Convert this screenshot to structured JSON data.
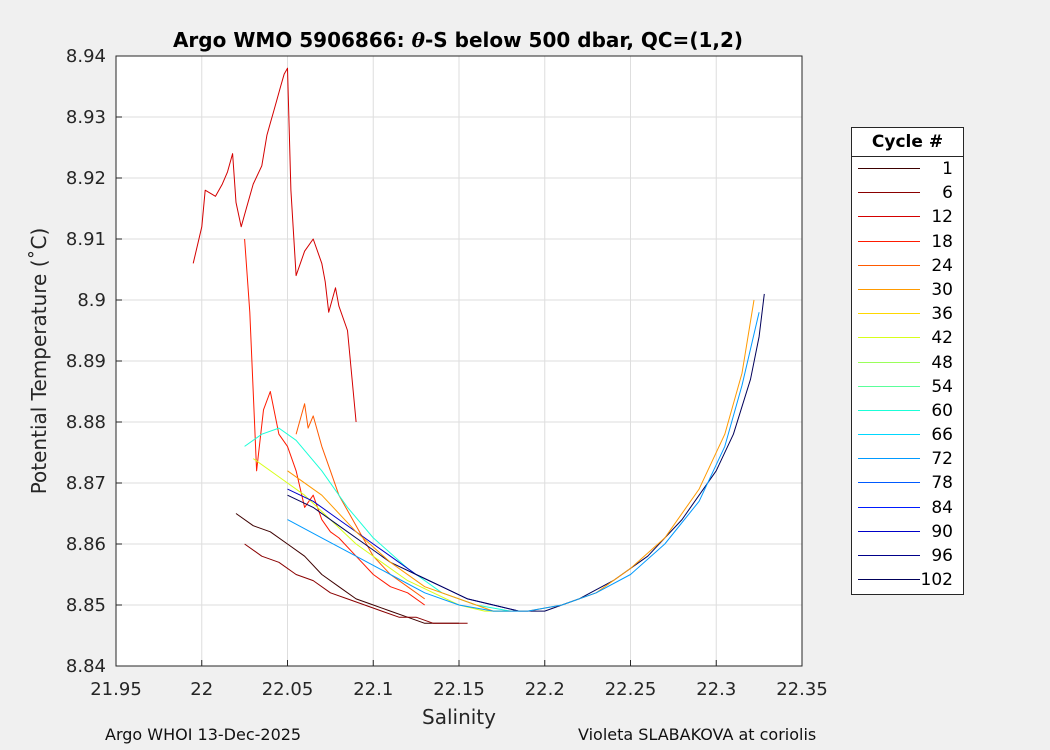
{
  "chart_data": {
    "type": "line",
    "title": "Argo WMO 5906866: θ-S below 500 dbar,  QC=(1,2)",
    "title_parts": {
      "prefix": "Argo WMO 5906866: ",
      "theta": "θ",
      "suffix": "-S below 500 dbar,  QC=(1,2)"
    },
    "xlabel": "Salinity",
    "ylabel": "Potential Temperature (˚C)",
    "xlim": [
      21.95,
      22.35
    ],
    "ylim": [
      8.84,
      8.94
    ],
    "xticks": [
      21.95,
      22,
      22.05,
      22.1,
      22.15,
      22.2,
      22.25,
      22.3,
      22.35
    ],
    "xtick_labels": [
      "21.95",
      "22",
      "22.05",
      "22.1",
      "22.15",
      "22.2",
      "22.25",
      "22.3",
      "22.35"
    ],
    "yticks": [
      8.84,
      8.85,
      8.86,
      8.87,
      8.88,
      8.89,
      8.9,
      8.91,
      8.92,
      8.93,
      8.94
    ],
    "ytick_labels": [
      "8.84",
      "8.85",
      "8.86",
      "8.87",
      "8.88",
      "8.89",
      "8.9",
      "8.91",
      "8.92",
      "8.93",
      "8.94"
    ],
    "grid": true,
    "legend": {
      "title": "Cycle #",
      "position": "right",
      "entries": [
        {
          "label": "1",
          "color": "#3d0000"
        },
        {
          "label": "6",
          "color": "#8a0000"
        },
        {
          "label": "12",
          "color": "#d40000"
        },
        {
          "label": "18",
          "color": "#ff1a00"
        },
        {
          "label": "24",
          "color": "#ff5a00"
        },
        {
          "label": "30",
          "color": "#ff9a00"
        },
        {
          "label": "36",
          "color": "#ffd800"
        },
        {
          "label": "42",
          "color": "#d8ff1a"
        },
        {
          "label": "48",
          "color": "#9aff5a"
        },
        {
          "label": "54",
          "color": "#5aff9a"
        },
        {
          "label": "60",
          "color": "#1affd8"
        },
        {
          "label": "66",
          "color": "#00d8ff"
        },
        {
          "label": "72",
          "color": "#009aff"
        },
        {
          "label": "78",
          "color": "#005aff"
        },
        {
          "label": "84",
          "color": "#001aff"
        },
        {
          "label": "90",
          "color": "#0000c8"
        },
        {
          "label": "96",
          "color": "#00008a"
        },
        {
          "label": "102",
          "color": "#00005a"
        }
      ]
    },
    "series": [
      {
        "name": "12",
        "color": "#d40000",
        "x": [
          21.995,
          22.0,
          22.002,
          22.008,
          22.012,
          22.015,
          22.018,
          22.02,
          22.023,
          22.026,
          22.03,
          22.035,
          22.038,
          22.04,
          22.042,
          22.044,
          22.046,
          22.048,
          22.05,
          22.052,
          22.055,
          22.06,
          22.065,
          22.07,
          22.072,
          22.074,
          22.078,
          22.08,
          22.085,
          22.09
        ],
        "y": [
          8.906,
          8.912,
          8.918,
          8.917,
          8.919,
          8.921,
          8.924,
          8.916,
          8.912,
          8.915,
          8.919,
          8.922,
          8.927,
          8.929,
          8.931,
          8.933,
          8.935,
          8.937,
          8.938,
          8.918,
          8.904,
          8.908,
          8.91,
          8.906,
          8.903,
          8.898,
          8.902,
          8.899,
          8.895,
          8.88
        ]
      },
      {
        "name": "18",
        "color": "#ff1a00",
        "x": [
          22.025,
          22.028,
          22.032,
          22.036,
          22.04,
          22.045,
          22.05,
          22.055,
          22.06,
          22.065,
          22.07,
          22.075,
          22.08,
          22.09,
          22.1,
          22.11,
          22.12,
          22.13
        ],
        "y": [
          8.91,
          8.898,
          8.872,
          8.882,
          8.885,
          8.878,
          8.876,
          8.872,
          8.866,
          8.868,
          8.864,
          8.862,
          8.861,
          8.858,
          8.855,
          8.853,
          8.852,
          8.85
        ]
      },
      {
        "name": "24",
        "color": "#ff5a00",
        "x": [
          22.055,
          22.06,
          22.062,
          22.065,
          22.07,
          22.075,
          22.08,
          22.09,
          22.1,
          22.11,
          22.12,
          22.13
        ],
        "y": [
          8.878,
          8.883,
          8.879,
          8.881,
          8.876,
          8.872,
          8.868,
          8.863,
          8.858,
          8.855,
          8.853,
          8.851
        ]
      },
      {
        "name": "1",
        "color": "#3d0000",
        "x": [
          22.02,
          22.03,
          22.04,
          22.05,
          22.06,
          22.07,
          22.08,
          22.09,
          22.1,
          22.11,
          22.12,
          22.13,
          22.14,
          22.15
        ],
        "y": [
          8.865,
          8.863,
          8.862,
          8.86,
          8.858,
          8.855,
          8.853,
          8.851,
          8.85,
          8.849,
          8.848,
          8.847,
          8.847,
          8.847
        ]
      },
      {
        "name": "6",
        "color": "#8a0000",
        "x": [
          22.025,
          22.035,
          22.045,
          22.055,
          22.065,
          22.075,
          22.085,
          22.095,
          22.105,
          22.115,
          22.125,
          22.135,
          22.145,
          22.155
        ],
        "y": [
          8.86,
          8.858,
          8.857,
          8.855,
          8.854,
          8.852,
          8.851,
          8.85,
          8.849,
          8.848,
          8.848,
          8.847,
          8.847,
          8.847
        ]
      },
      {
        "name": "42",
        "color": "#d8ff1a",
        "x": [
          22.03,
          22.045,
          22.06,
          22.075,
          22.09,
          22.105,
          22.12,
          22.135,
          22.15,
          22.165,
          22.18
        ],
        "y": [
          8.874,
          8.871,
          8.868,
          8.864,
          8.86,
          8.857,
          8.854,
          8.852,
          8.85,
          8.849,
          8.849
        ]
      },
      {
        "name": "60",
        "color": "#1affd8",
        "x": [
          22.025,
          22.035,
          22.045,
          22.055,
          22.07,
          22.085,
          22.1,
          22.12,
          22.14,
          22.16,
          22.18
        ],
        "y": [
          8.876,
          8.878,
          8.879,
          8.877,
          8.872,
          8.866,
          8.861,
          8.856,
          8.852,
          8.85,
          8.849
        ]
      },
      {
        "name": "90",
        "color": "#0000c8",
        "x": [
          22.05,
          22.065,
          22.08,
          22.095,
          22.11,
          22.125,
          22.14,
          22.155,
          22.17,
          22.185
        ],
        "y": [
          8.869,
          8.867,
          8.864,
          8.861,
          8.858,
          8.855,
          8.853,
          8.851,
          8.85,
          8.849
        ]
      },
      {
        "name": "102",
        "color": "#00005a",
        "x": [
          22.05,
          22.065,
          22.08,
          22.095,
          22.11,
          22.125,
          22.14,
          22.155,
          22.17,
          22.185,
          22.2,
          22.22,
          22.24,
          22.26,
          22.28,
          22.3,
          22.31,
          22.32,
          22.325,
          22.328
        ],
        "y": [
          8.868,
          8.866,
          8.863,
          8.86,
          8.857,
          8.855,
          8.853,
          8.851,
          8.85,
          8.849,
          8.849,
          8.851,
          8.854,
          8.858,
          8.864,
          8.872,
          8.878,
          8.887,
          8.894,
          8.901
        ]
      },
      {
        "name": "30",
        "color": "#ff9a00",
        "x": [
          22.05,
          22.07,
          22.09,
          22.11,
          22.13,
          22.15,
          22.17,
          22.19,
          22.21,
          22.23,
          22.25,
          22.27,
          22.29,
          22.305,
          22.315,
          22.322
        ],
        "y": [
          8.872,
          8.868,
          8.862,
          8.857,
          8.853,
          8.851,
          8.849,
          8.849,
          8.85,
          8.852,
          8.856,
          8.861,
          8.869,
          8.878,
          8.888,
          8.9
        ]
      },
      {
        "name": "72",
        "color": "#009aff",
        "x": [
          22.05,
          22.07,
          22.09,
          22.11,
          22.13,
          22.15,
          22.17,
          22.19,
          22.21,
          22.23,
          22.25,
          22.27,
          22.29,
          22.305,
          22.315,
          22.325
        ],
        "y": [
          8.864,
          8.861,
          8.858,
          8.855,
          8.852,
          8.85,
          8.849,
          8.849,
          8.85,
          8.852,
          8.855,
          8.86,
          8.867,
          8.876,
          8.886,
          8.898
        ]
      }
    ]
  },
  "footer": {
    "left": "Argo WHOI 13-Dec-2025",
    "right": "Violeta SLABAKOVA at coriolis"
  }
}
